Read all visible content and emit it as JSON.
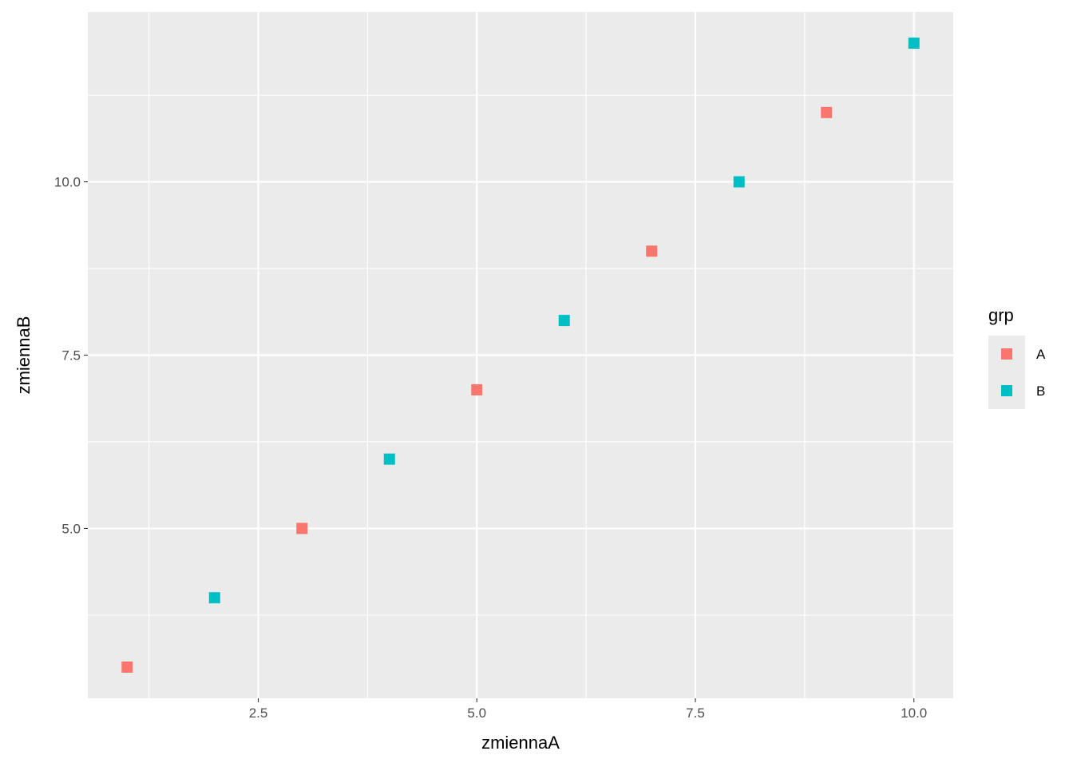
{
  "chart_data": {
    "type": "scatter",
    "xlabel": "zmiennaA",
    "ylabel": "zmiennaB",
    "xlim": [
      0.55,
      10.45
    ],
    "ylim": [
      2.55,
      12.45
    ],
    "x_ticks": [
      2.5,
      5.0,
      7.5,
      10.0
    ],
    "x_tick_labels": [
      "2.5",
      "5.0",
      "7.5",
      "10.0"
    ],
    "y_ticks": [
      5.0,
      7.5,
      10.0
    ],
    "y_tick_labels": [
      "5.0",
      "7.5",
      "10.0"
    ],
    "grid": true,
    "legend": {
      "title": "grp",
      "position": "right"
    },
    "series": [
      {
        "name": "A",
        "color": "#F8766D",
        "marker": "square",
        "points": [
          {
            "x": 1,
            "y": 3
          },
          {
            "x": 3,
            "y": 5
          },
          {
            "x": 5,
            "y": 7
          },
          {
            "x": 7,
            "y": 9
          },
          {
            "x": 9,
            "y": 11
          }
        ]
      },
      {
        "name": "B",
        "color": "#00BFC4",
        "marker": "square",
        "points": [
          {
            "x": 2,
            "y": 4
          },
          {
            "x": 4,
            "y": 6
          },
          {
            "x": 6,
            "y": 8
          },
          {
            "x": 8,
            "y": 10
          },
          {
            "x": 10,
            "y": 12
          }
        ]
      }
    ],
    "panel_background": "#EBEBEB",
    "grid_color": "#FFFFFF"
  }
}
